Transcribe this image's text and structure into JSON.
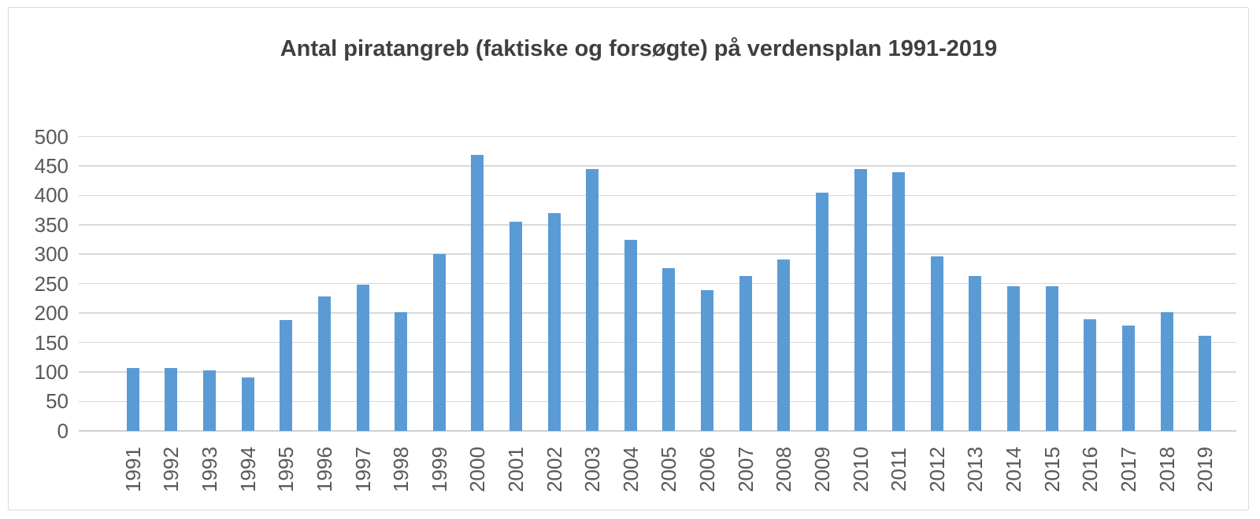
{
  "chart_data": {
    "type": "bar",
    "title": "Antal piratangreb (faktiske og forsøgte) på verdensplan 1991-2019",
    "categories": [
      "1991",
      "1992",
      "1993",
      "1994",
      "1995",
      "1996",
      "1997",
      "1998",
      "1999",
      "2000",
      "2001",
      "2002",
      "2003",
      "2004",
      "2005",
      "2006",
      "2007",
      "2008",
      "2009",
      "2010",
      "2011",
      "2012",
      "2013",
      "2014",
      "2015",
      "2016",
      "2017",
      "2018",
      "2019"
    ],
    "values": [
      107,
      106,
      103,
      90,
      188,
      228,
      248,
      202,
      300,
      469,
      355,
      370,
      445,
      325,
      276,
      239,
      263,
      291,
      405,
      445,
      439,
      296,
      263,
      245,
      246,
      190,
      179,
      201,
      162
    ],
    "xlabel": "",
    "ylabel": "",
    "ylim": [
      0,
      500
    ],
    "ytick_step": 50,
    "yticks": [
      0,
      50,
      100,
      150,
      200,
      250,
      300,
      350,
      400,
      450,
      500
    ],
    "grid": true,
    "legend": "none",
    "bar_color": "#5b9bd5",
    "gridline_color": "#d9d9d9",
    "baseline_color": "#d0d0d0",
    "axis_label_color": "#595959",
    "title_color": "#3f3f3f",
    "card_border_color": "#d9d9d9",
    "background_color": "#ffffff"
  }
}
